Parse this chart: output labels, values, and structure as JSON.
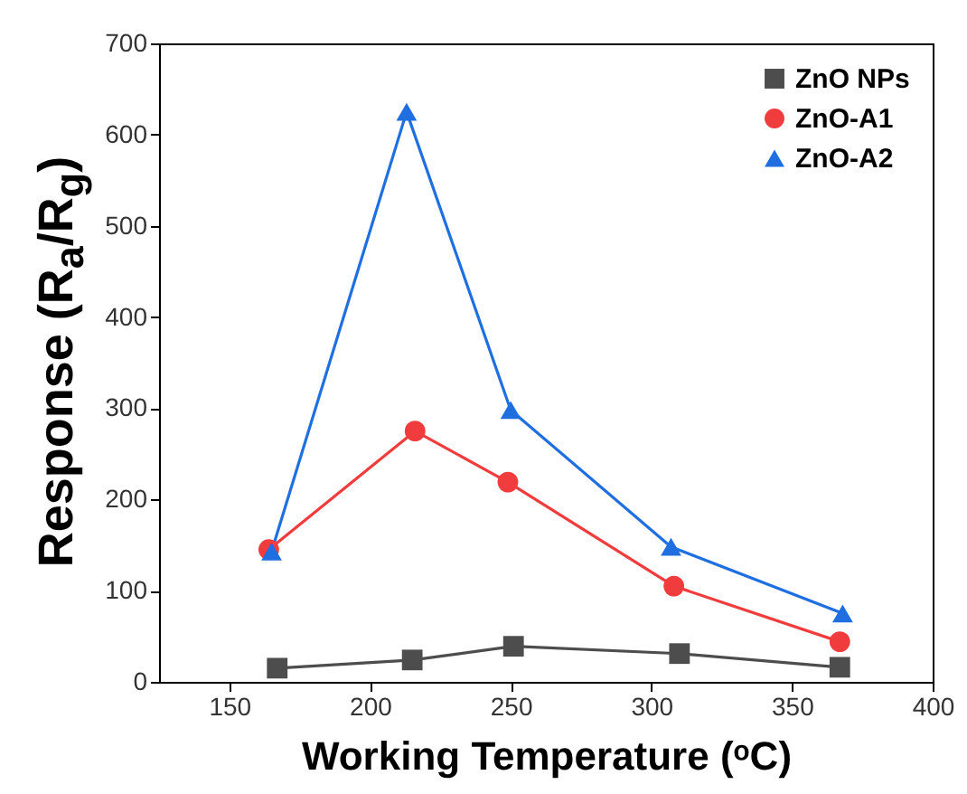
{
  "chart_data": {
    "type": "line",
    "xlabel": "Working Temperature (ᵒC)",
    "ylabel": "Response (R$_{a}$/R$_{g}$)",
    "xlim": [
      125,
      400
    ],
    "xticks": [
      150,
      200,
      250,
      300,
      350,
      400
    ],
    "ylim": [
      0,
      700
    ],
    "yticks": [
      0,
      100,
      200,
      300,
      400,
      500,
      600,
      700
    ],
    "grid": false,
    "legend": "top right",
    "line_style": "solid",
    "series": [
      {
        "name": "ZnO NPs",
        "color": "#4d4d4d",
        "marker": "square",
        "x": [
          167,
          215,
          251,
          310,
          367
        ],
        "values": [
          15,
          24,
          39,
          31,
          16
        ]
      },
      {
        "name": "ZnO-A1",
        "color": "#f03c3c",
        "marker": "circle",
        "x": [
          164,
          216,
          249,
          308,
          367
        ],
        "values": [
          145,
          275,
          219,
          105,
          44
        ]
      },
      {
        "name": "ZnO-A2",
        "color": "#1f6fe0",
        "marker": "triangle",
        "x": [
          165,
          213,
          250,
          307,
          368
        ],
        "values": [
          143,
          625,
          298,
          148,
          75
        ]
      }
    ]
  }
}
